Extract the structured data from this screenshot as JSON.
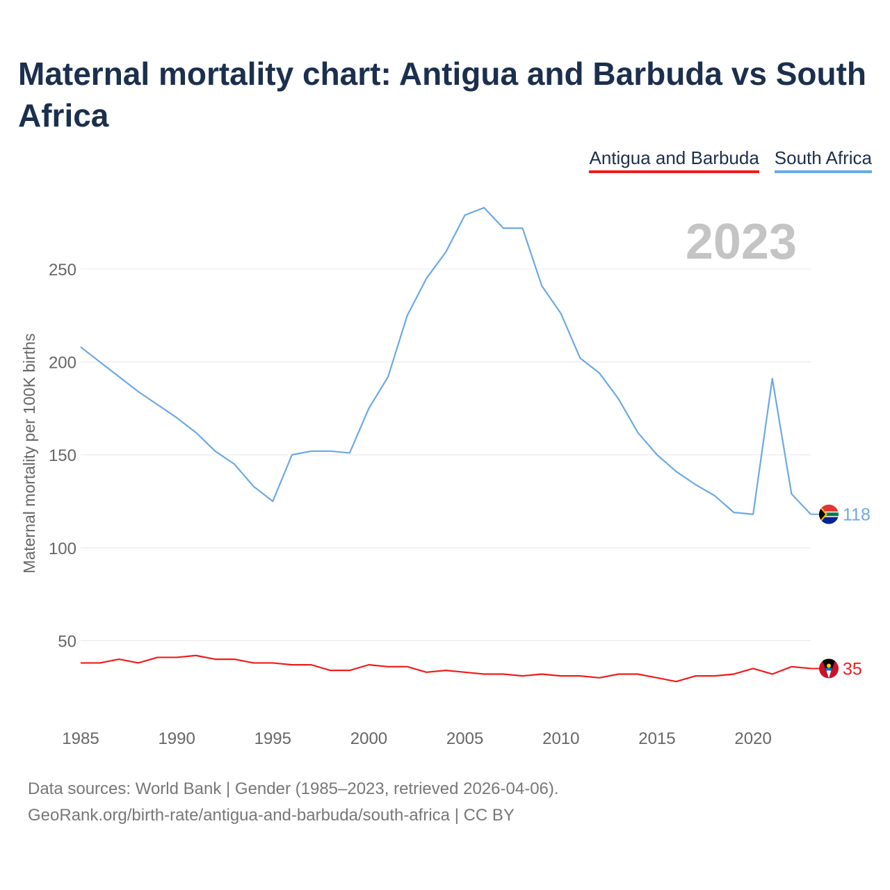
{
  "title": "Maternal mortality chart: Antigua and Barbuda vs South Africa",
  "legend": [
    {
      "name": "Antigua and Barbuda",
      "color": "#ee1c1c"
    },
    {
      "name": "South Africa",
      "color": "#6aa9e6"
    }
  ],
  "year_label": "2023",
  "source_line1": "Data sources: World Bank | Gender (1985–2023, retrieved 2026-04-06).",
  "source_line2": "GeoRank.org/birth-rate/antigua-and-barbuda/south-africa | CC BY",
  "chart_data": {
    "type": "line",
    "title": "Maternal mortality chart: Antigua and Barbuda vs South Africa",
    "xlabel": "",
    "ylabel": "Maternal mortality per 100K births",
    "x": [
      1985,
      1986,
      1987,
      1988,
      1989,
      1990,
      1991,
      1992,
      1993,
      1994,
      1995,
      1996,
      1997,
      1998,
      1999,
      2000,
      2001,
      2002,
      2003,
      2004,
      2005,
      2006,
      2007,
      2008,
      2009,
      2010,
      2011,
      2012,
      2013,
      2014,
      2015,
      2016,
      2017,
      2018,
      2019,
      2020,
      2021,
      2022,
      2023
    ],
    "xlim": [
      1985,
      2023
    ],
    "ylim": [
      0,
      290
    ],
    "xticks": [
      1985,
      1990,
      1995,
      2000,
      2005,
      2010,
      2015,
      2020
    ],
    "yticks": [
      50,
      100,
      150,
      200,
      250
    ],
    "grid": true,
    "series": [
      {
        "name": "South Africa",
        "color": "#6aa9e6",
        "end_label": "118",
        "values": [
          208,
          200,
          192,
          184,
          177,
          170,
          162,
          152,
          145,
          133,
          125,
          150,
          152,
          152,
          151,
          175,
          192,
          225,
          245,
          259,
          279,
          283,
          272,
          272,
          241,
          226,
          202,
          194,
          180,
          162,
          150,
          141,
          134,
          128,
          119,
          118,
          191,
          129,
          118
        ]
      },
      {
        "name": "Antigua and Barbuda",
        "color": "#ee1c1c",
        "end_label": "35",
        "values": [
          38,
          38,
          40,
          38,
          41,
          41,
          42,
          40,
          40,
          38,
          38,
          37,
          37,
          34,
          34,
          37,
          36,
          36,
          33,
          34,
          33,
          32,
          32,
          31,
          32,
          31,
          31,
          30,
          32,
          32,
          30,
          28,
          31,
          31,
          32,
          35,
          32,
          36,
          35
        ]
      }
    ]
  }
}
